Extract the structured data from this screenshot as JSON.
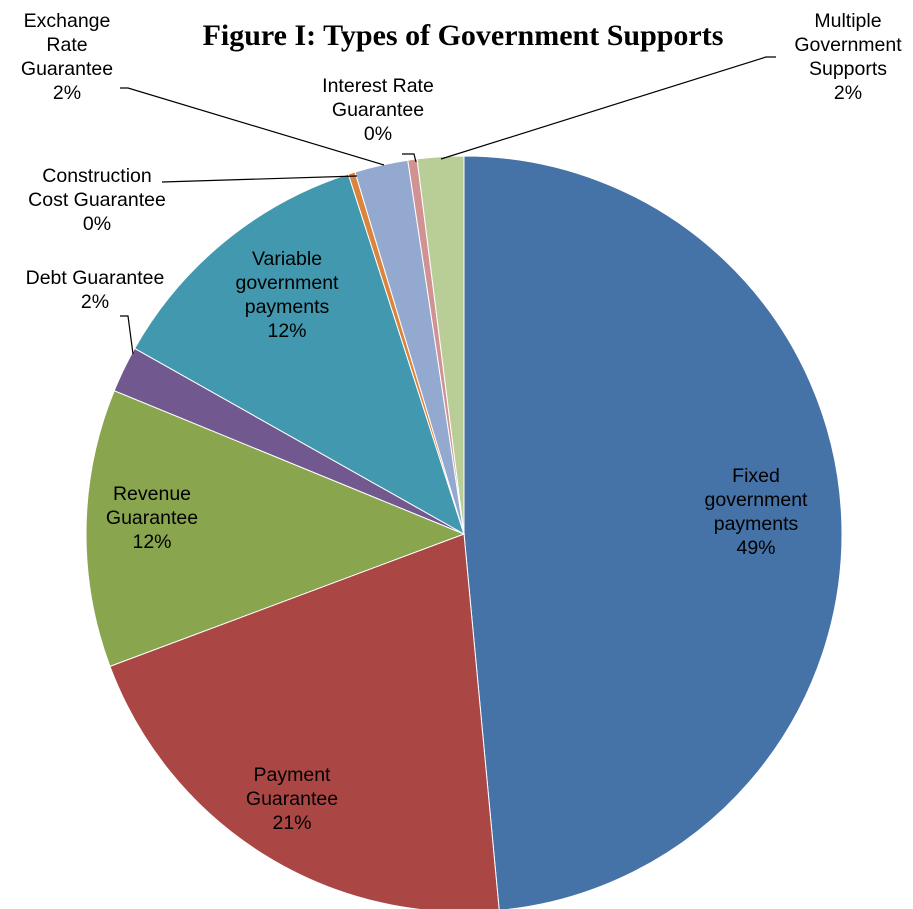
{
  "chart_data": {
    "type": "pie",
    "title": "Figure I: Types of Government Supports",
    "start_angle_deg": 0,
    "direction": "clockwise",
    "slices": [
      {
        "name": "Fixed government payments",
        "label_lines": [
          "Fixed",
          "government",
          "payments"
        ],
        "value": 49,
        "label": "49%",
        "color": "#4572A7"
      },
      {
        "name": "Payment Guarantee",
        "label_lines": [
          "Payment",
          "Guarantee"
        ],
        "value": 21,
        "label": "21%",
        "color": "#AA4643"
      },
      {
        "name": "Revenue Guarantee",
        "label_lines": [
          "Revenue",
          "Guarantee"
        ],
        "value": 12,
        "label": "12%",
        "color": "#89A54E"
      },
      {
        "name": "Debt Guarantee",
        "label_lines": [
          "Debt Guarantee"
        ],
        "value": 2,
        "label": "2%",
        "color": "#71588F"
      },
      {
        "name": "Variable government payments",
        "label_lines": [
          "Variable",
          "government",
          "payments"
        ],
        "value": 12,
        "label": "12%",
        "color": "#4198AF"
      },
      {
        "name": "Construction Cost Guarantee",
        "label_lines": [
          "Construction",
          "Cost Guarantee"
        ],
        "value": 0.3,
        "label": "0%",
        "color": "#DB843D"
      },
      {
        "name": "Exchange Rate Guarantee",
        "label_lines": [
          "Exchange",
          "Rate",
          "Guarantee"
        ],
        "value": 2.3,
        "label": "2%",
        "color": "#93A9CF"
      },
      {
        "name": "Interest Rate Guarantee",
        "label_lines": [
          "Interest Rate",
          "Guarantee"
        ],
        "value": 0.4,
        "label": "0%",
        "color": "#D19392"
      },
      {
        "name": "Multiple Government Supports",
        "label_lines": [
          "Multiple",
          "Government",
          "Supports"
        ],
        "value": 2,
        "label": "2%",
        "color": "#B9CD96"
      }
    ],
    "legend": "none"
  }
}
